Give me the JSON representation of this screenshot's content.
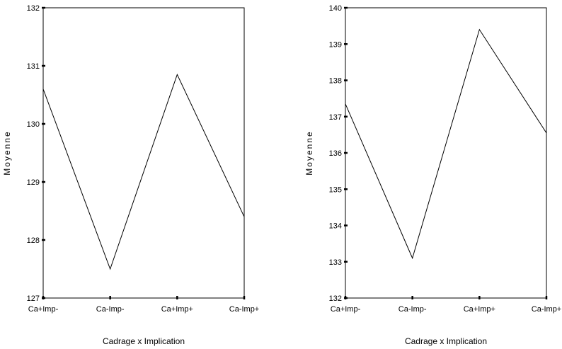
{
  "chart_data": [
    {
      "type": "line",
      "categories": [
        "Ca+Imp-",
        "Ca-Imp-",
        "Ca+Imp+",
        "Ca-Imp+"
      ],
      "values": [
        130.6,
        127.5,
        130.85,
        128.4
      ],
      "xlabel": "Cadrage x Implication",
      "ylabel": "Moyenne",
      "ylim": [
        127,
        132
      ],
      "yticks": [
        127,
        128,
        129,
        130,
        131,
        132
      ],
      "grid": false
    },
    {
      "type": "line",
      "categories": [
        "Ca+Imp-",
        "Ca-Imp-",
        "Ca+Imp+",
        "Ca-Imp+"
      ],
      "values": [
        137.35,
        133.1,
        139.4,
        136.55
      ],
      "xlabel": "Cadrage x Implication",
      "ylabel": "Moyenne",
      "ylim": [
        132,
        140
      ],
      "yticks": [
        132,
        133,
        134,
        135,
        136,
        137,
        138,
        139,
        140
      ],
      "grid": false
    }
  ]
}
